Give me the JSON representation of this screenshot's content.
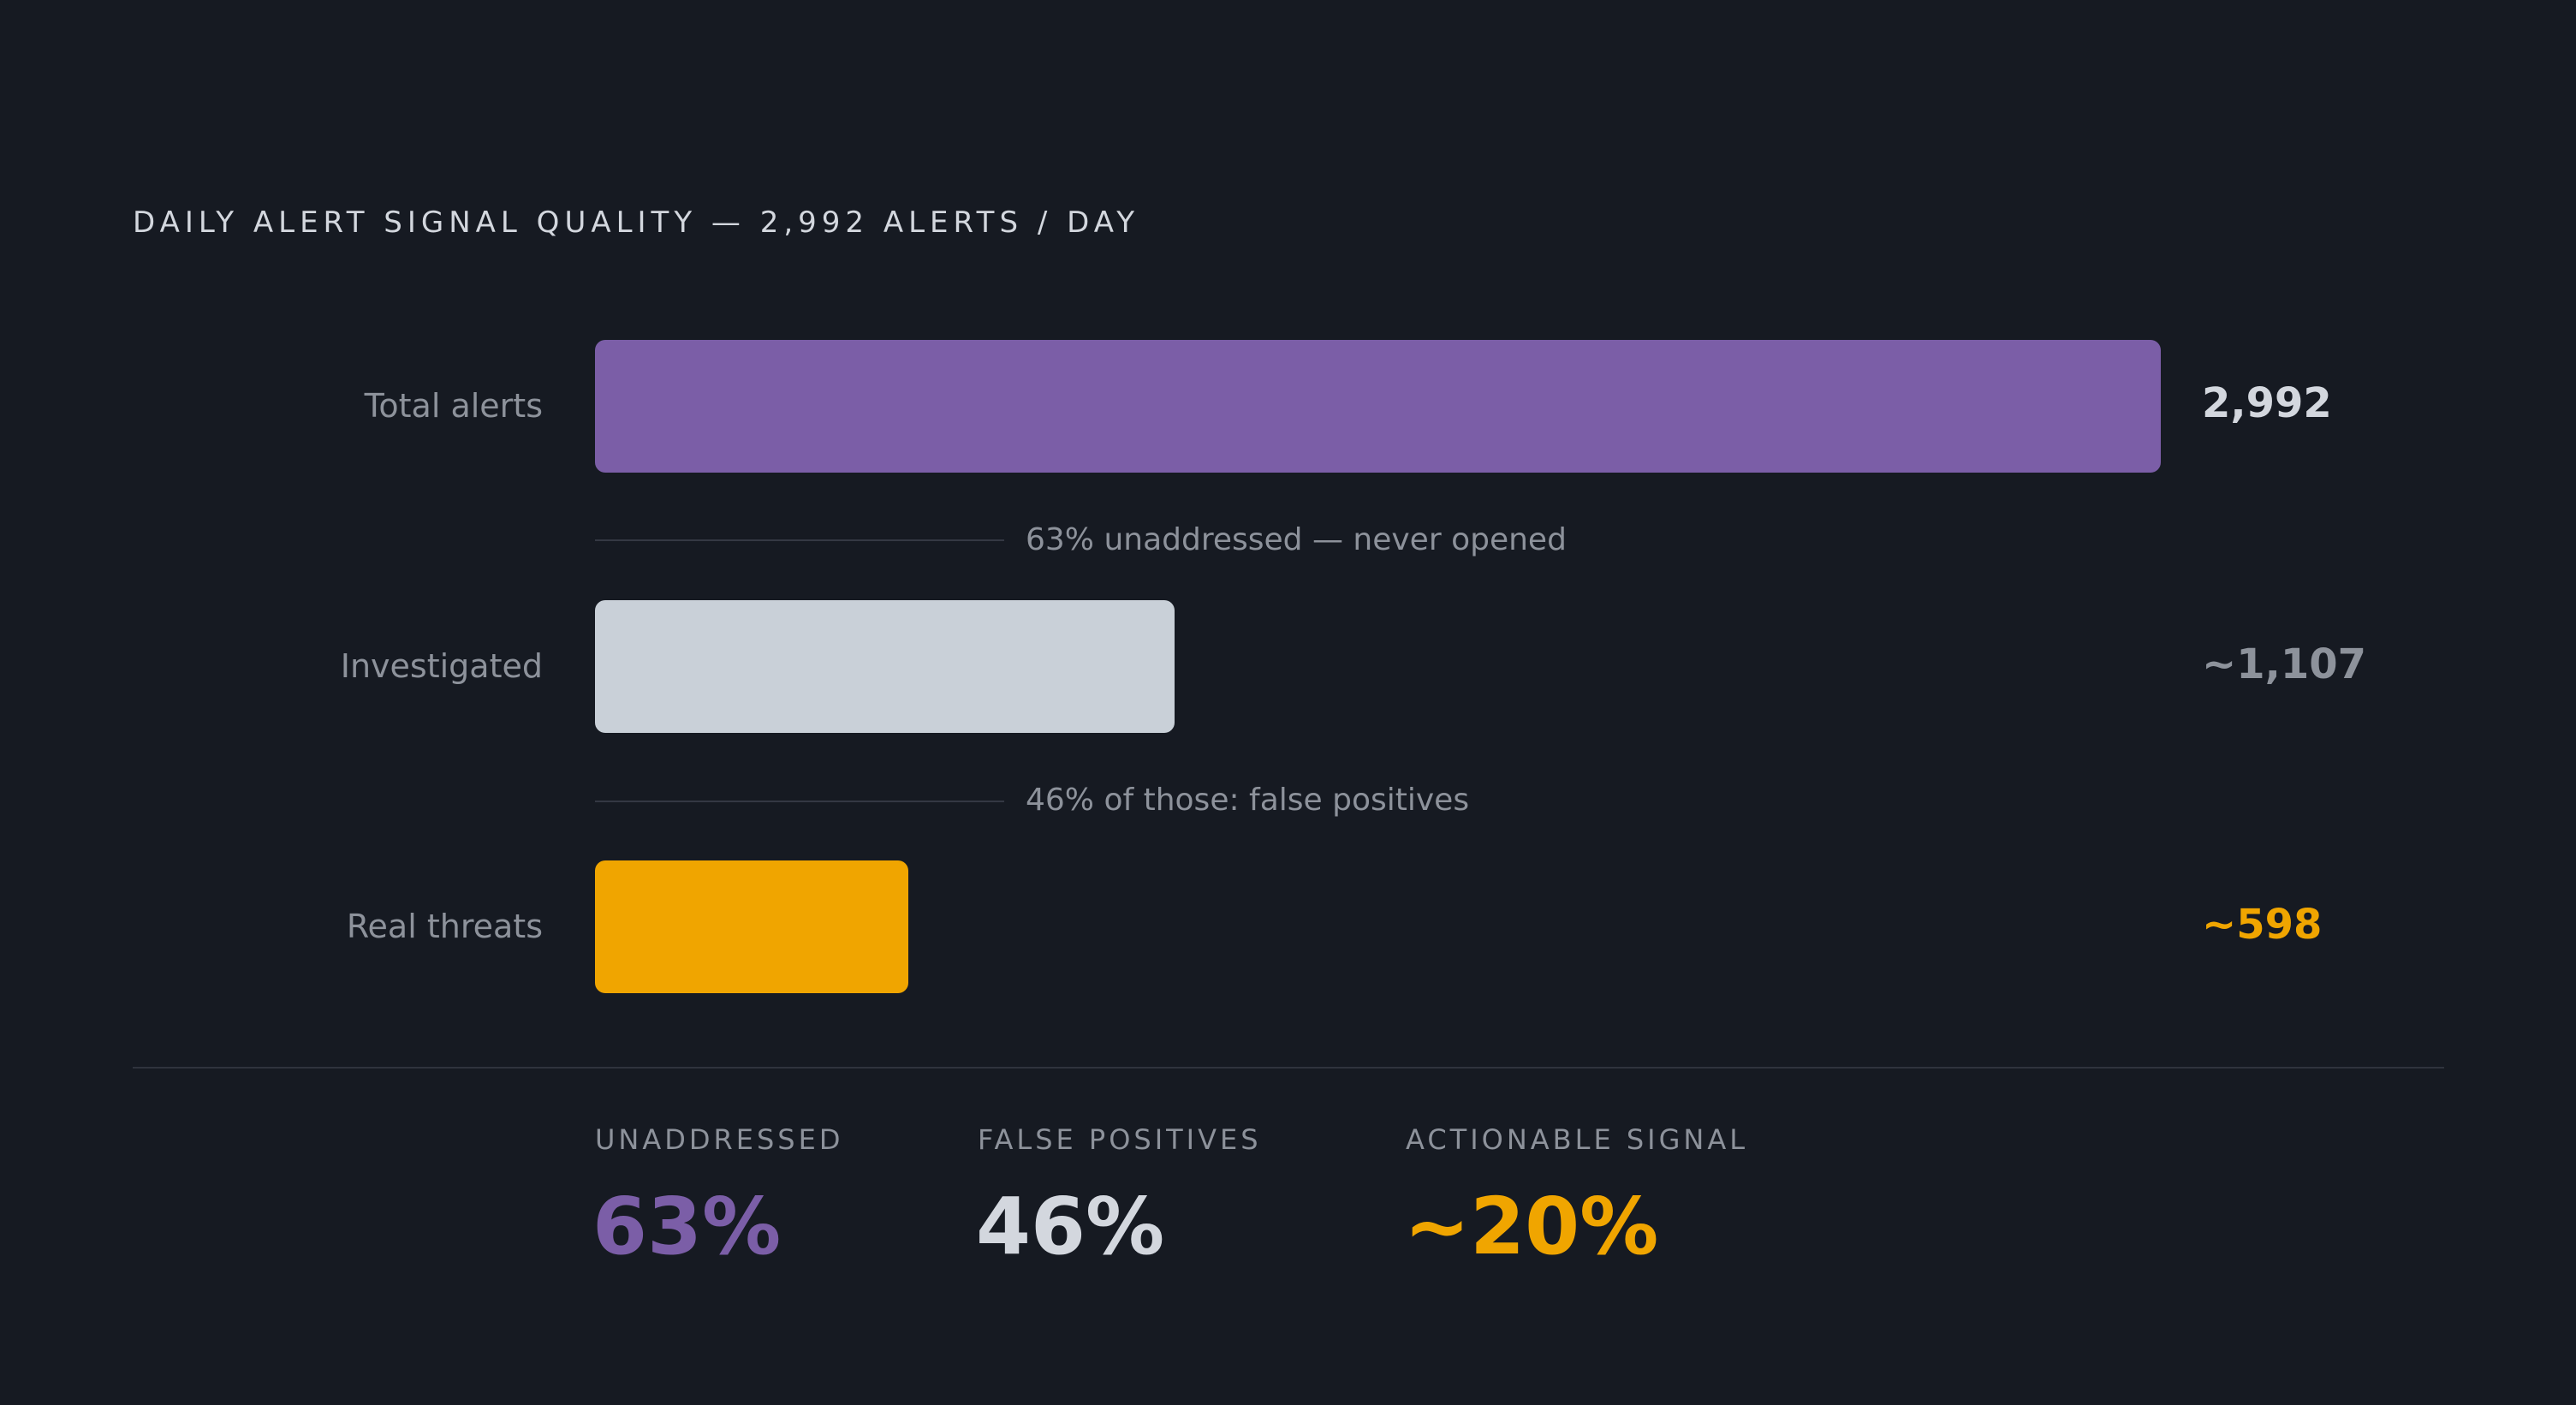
{
  "title": "DAILY ALERT SIGNAL QUALITY — 2,992 ALERTS / DAY",
  "chart_data": {
    "type": "bar",
    "orientation": "horizontal",
    "categories": [
      "Total alerts",
      "Investigated",
      "Real threats"
    ],
    "values": [
      2992,
      1107,
      598
    ],
    "value_labels": [
      "2,992",
      "~1,107",
      "~598"
    ],
    "colors": [
      "#7b5ea7",
      "#c9d0d8",
      "#f0a500"
    ],
    "value_label_colors": [
      "#d3d7de",
      "#8d929b",
      "#f0a500"
    ],
    "xlim": [
      0,
      2992
    ],
    "grid": false,
    "annotations": [
      "63% unaddressed — never opened",
      "46% of those: false positives"
    ]
  },
  "stats": [
    {
      "label": "UNADDRESSED",
      "value": "63%",
      "color": "#7b5ea7"
    },
    {
      "label": "FALSE POSITIVES",
      "value": "46%",
      "color": "#d3d7de"
    },
    {
      "label": "ACTIONABLE SIGNAL",
      "value": "~20%",
      "color": "#f0a500"
    }
  ]
}
